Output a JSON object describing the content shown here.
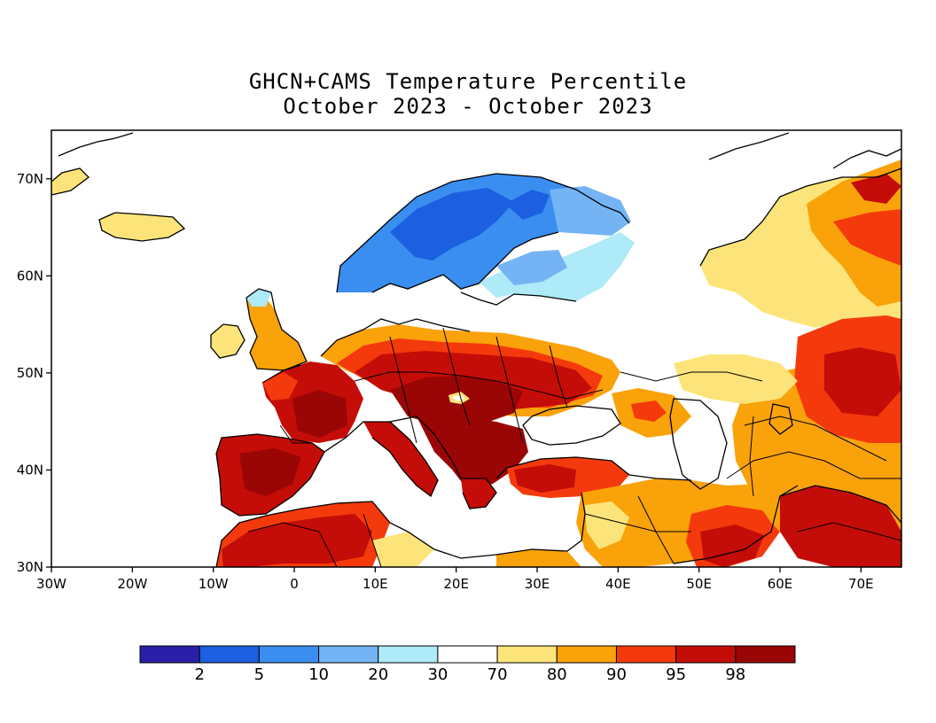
{
  "map": {
    "title": "GHCN+CAMS Temperature Percentile",
    "subtitle": "October 2023 - October 2023",
    "lon_ticks": [
      "30W",
      "20W",
      "10W",
      "0",
      "10E",
      "20E",
      "30E",
      "40E",
      "50E",
      "60E",
      "70E"
    ],
    "lat_ticks": [
      "70N",
      "60N",
      "50N",
      "40N",
      "30N"
    ],
    "extent": {
      "lon": [
        -30,
        75
      ],
      "lat": [
        30,
        75
      ]
    }
  },
  "legend": {
    "bins": [
      {
        "color": "#2a1fa8"
      },
      {
        "color": "#1c5fe0"
      },
      {
        "color": "#3a8ef0"
      },
      {
        "color": "#74b4f5"
      },
      {
        "color": "#aeeaf7"
      },
      {
        "color": "#ffffff"
      },
      {
        "color": "#fde47a"
      },
      {
        "color": "#f9a20a"
      },
      {
        "color": "#f43a0c"
      },
      {
        "color": "#c40d08"
      },
      {
        "color": "#9a0505"
      }
    ],
    "labels": [
      "2",
      "5",
      "10",
      "20",
      "30",
      "70",
      "80",
      "90",
      "95",
      "98"
    ]
  },
  "colors": {
    "p98plus": "#9a0505",
    "p95_98": "#c40d08",
    "p90_95": "#f43a0c",
    "p80_90": "#f9a20a",
    "p70_80": "#fde47a",
    "p20_30": "#aeeaf7",
    "p10_20": "#74b4f5",
    "p5_10": "#3a8ef0",
    "p2_5": "#1c5fe0"
  }
}
